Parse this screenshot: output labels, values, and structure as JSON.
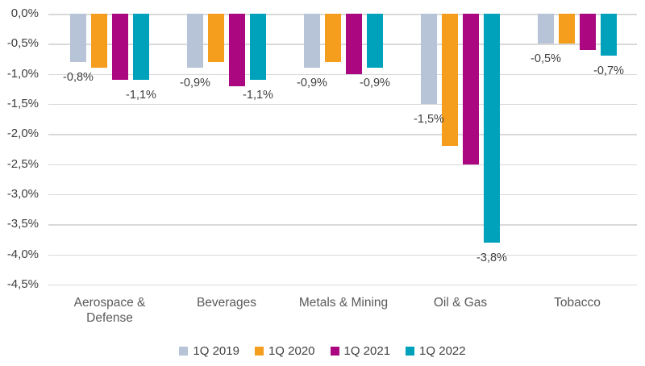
{
  "chart_data": {
    "type": "bar",
    "orientation": "vertical",
    "value_format": "percent-comma-decimal",
    "categories": [
      "Aerospace & Defense",
      "Beverages",
      "Metals & Mining",
      "Oil & Gas",
      "Tobacco"
    ],
    "series": [
      {
        "name": "1Q 2019",
        "color": "#b7c3d6",
        "values": [
          -0.8,
          -0.9,
          -0.9,
          -1.5,
          -0.5
        ],
        "data_labels": [
          "-0,8%",
          "-0,9%",
          "-0,9%",
          "-1,5%",
          "-0,5%"
        ]
      },
      {
        "name": "1Q 2020",
        "color": "#f59d1d",
        "values": [
          -0.9,
          -0.8,
          -0.8,
          -2.2,
          -0.5
        ],
        "data_labels": null
      },
      {
        "name": "1Q 2021",
        "color": "#aa0781",
        "values": [
          -1.1,
          -1.2,
          -1.0,
          -2.5,
          -0.6
        ],
        "data_labels": null
      },
      {
        "name": "1Q 2022",
        "color": "#00a2bb",
        "values": [
          -1.1,
          -1.1,
          -0.9,
          -3.8,
          -0.7
        ],
        "data_labels": [
          "-1,1%",
          "-1,1%",
          "-0,9%",
          "-3,8%",
          "-0,7%"
        ]
      }
    ],
    "y_axis": {
      "ticks": [
        "0,0%",
        "-0,5%",
        "-1,0%",
        "-1,5%",
        "-2,0%",
        "-2,5%",
        "-3,0%",
        "-3,5%",
        "-4,0%",
        "-4,5%"
      ],
      "min": -4.5,
      "max": 0.0,
      "step": 0.5
    },
    "grid": true,
    "legend_position": "bottom",
    "gridline_color": "#d9d9d9",
    "axis_text_color": "#404040",
    "category_text_color": "#595959"
  }
}
